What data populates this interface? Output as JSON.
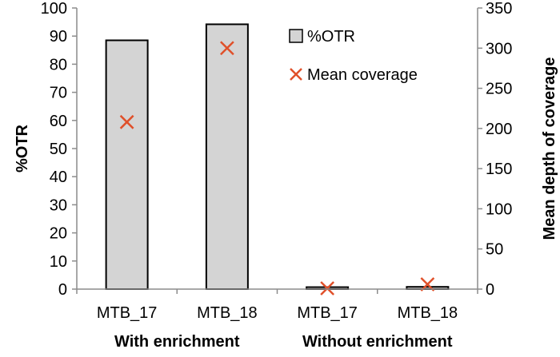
{
  "chart_data": {
    "type": "bar",
    "categories": [
      "MTB_17",
      "MTB_18",
      "MTB_17",
      "MTB_18"
    ],
    "groups": [
      {
        "label": "With enrichment",
        "categories": [
          0,
          1
        ]
      },
      {
        "label": "Without enrichment",
        "categories": [
          2,
          3
        ]
      }
    ],
    "series": [
      {
        "name": "%OTR",
        "kind": "bar",
        "axis": "left",
        "values": [
          88.5,
          94.2,
          0.7,
          0.8
        ],
        "color": "#d4d4d4",
        "stroke": "#000000"
      },
      {
        "name": "Mean coverage",
        "kind": "marker",
        "marker": "x",
        "axis": "right",
        "values": [
          208,
          300,
          1,
          6
        ],
        "color": "#e0502a"
      }
    ],
    "ylabel": "%OTR",
    "y2label": "Mean depth of coverage",
    "ylim": [
      0,
      100
    ],
    "y2lim": [
      0,
      350
    ],
    "yticks": [
      "0",
      "10",
      "20",
      "30",
      "40",
      "50",
      "60",
      "70",
      "80",
      "90",
      "100"
    ],
    "y2ticks": [
      "0",
      "50",
      "100",
      "150",
      "200",
      "250",
      "300",
      "350"
    ],
    "legend_position": "top-right",
    "grid": false
  }
}
